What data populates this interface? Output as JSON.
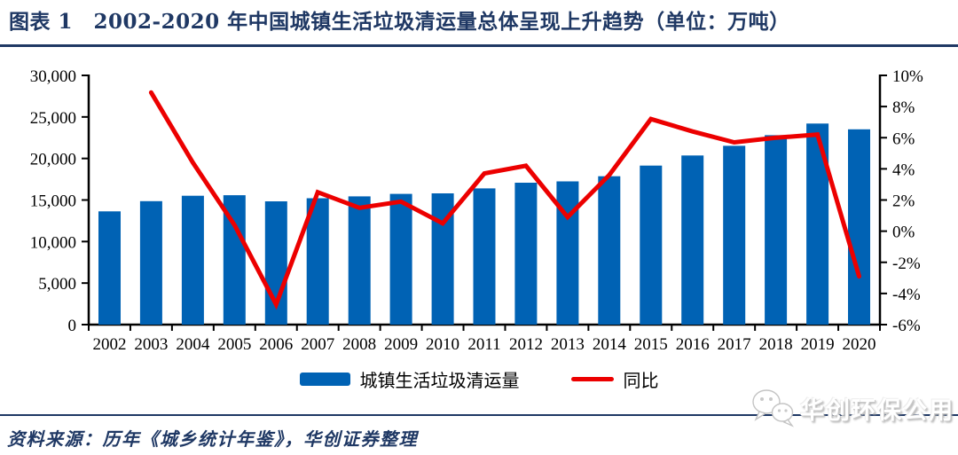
{
  "header": {
    "title": "图表 1　2002-2020 年中国城镇生活垃圾清运量总体呈现上升趋势（单位：万吨）"
  },
  "chart_data": {
    "type": "bar+line",
    "title": "2002-2020 年中国城镇生活垃圾清运量总体呈现上升趋势",
    "unit": "万吨",
    "grid": false,
    "legend_position": "bottom",
    "categories": [
      "2002",
      "2003",
      "2004",
      "2005",
      "2006",
      "2007",
      "2008",
      "2009",
      "2010",
      "2011",
      "2012",
      "2013",
      "2014",
      "2015",
      "2016",
      "2017",
      "2018",
      "2019",
      "2020"
    ],
    "series": [
      {
        "name": "城镇生活垃圾清运量",
        "chart_type": "bar",
        "axis": "left",
        "color": "#0062B4",
        "values": [
          13638,
          14857,
          15509,
          15577,
          14841,
          15215,
          15438,
          15734,
          15805,
          16395,
          17081,
          17239,
          17860,
          19142,
          20362,
          21521,
          22802,
          24206,
          23512
        ]
      },
      {
        "name": "同比",
        "chart_type": "line",
        "axis": "right",
        "color": "#EC0000",
        "values": [
          null,
          8.9,
          4.4,
          0.4,
          -4.7,
          2.5,
          1.5,
          1.9,
          0.5,
          3.7,
          4.2,
          0.9,
          3.6,
          7.2,
          6.4,
          5.7,
          6.0,
          6.2,
          -2.9
        ]
      }
    ],
    "left_axis": {
      "min": 0,
      "max": 30000,
      "step": 5000,
      "tick_labels": [
        "0",
        "5,000",
        "10,000",
        "15,000",
        "20,000",
        "25,000",
        "30,000"
      ]
    },
    "right_axis": {
      "min": -6,
      "max": 10,
      "step": 2,
      "tick_labels": [
        "-6%",
        "-4%",
        "-2%",
        "0%",
        "2%",
        "4%",
        "6%",
        "8%",
        "10%"
      ]
    }
  },
  "legend": {
    "bar_label": "城镇生活垃圾清运量",
    "line_label": "同比"
  },
  "watermark": {
    "label": "华创环保公用"
  },
  "source": {
    "text": "资料来源：历年《城乡统计年鉴》，华创证券整理"
  },
  "colors": {
    "navy": "#1F3864",
    "bar_blue": "#0062B4",
    "line_red": "#EC0000",
    "axis_black": "#000000",
    "background": "#FFFFFF"
  }
}
